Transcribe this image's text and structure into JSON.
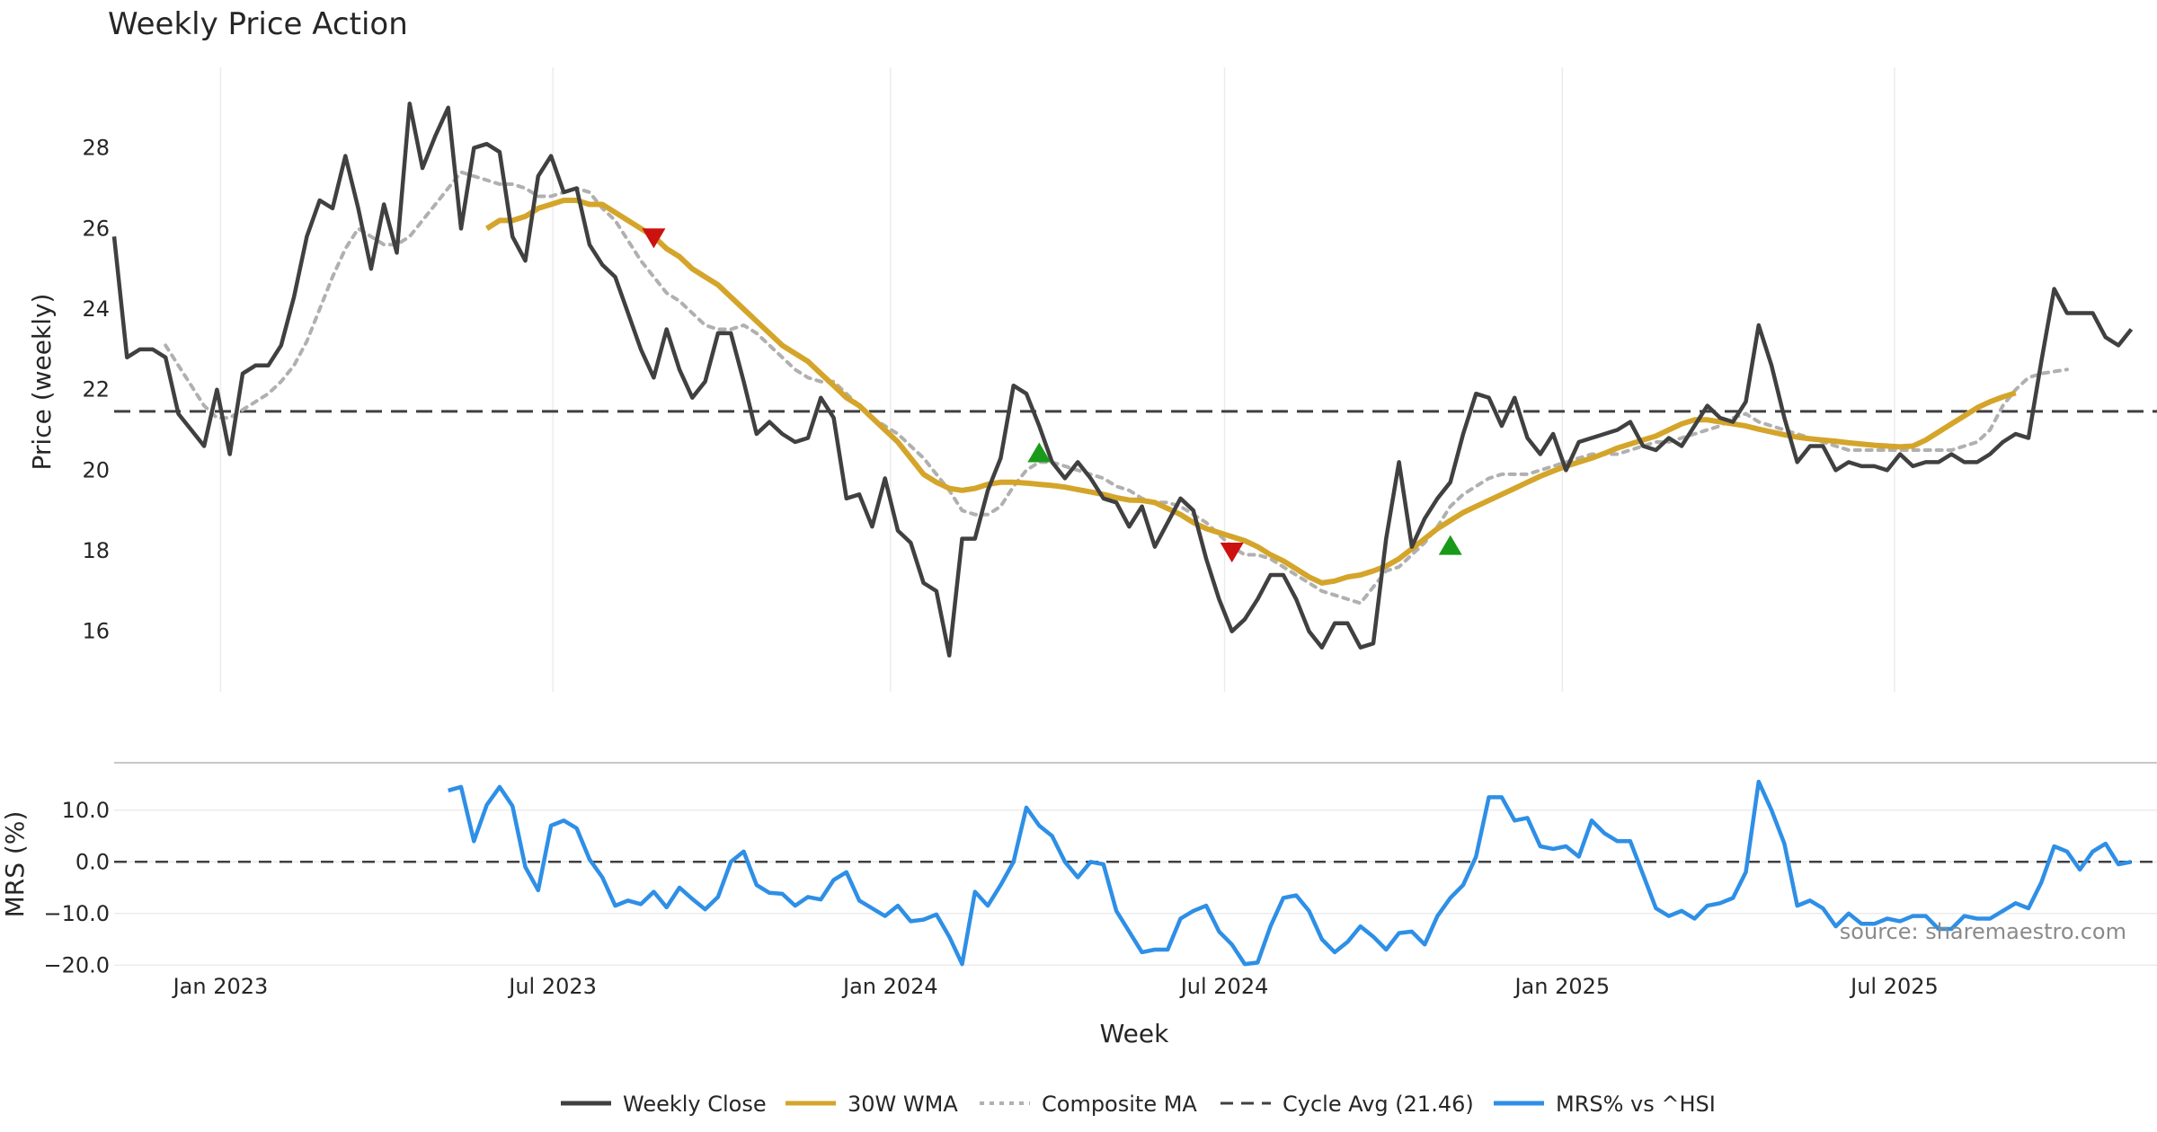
{
  "colors": {
    "close": "#404040",
    "wma": "#d4a52a",
    "composite": "#b0b0b0",
    "cycle": "#404040",
    "mrs": "#2e8fe6",
    "marker_up": "#1a9a1a",
    "marker_down": "#cc1111",
    "grid": "#ececec"
  },
  "chart_data": {
    "type": "line",
    "title": "Weekly Price Action",
    "xlabel": "Week",
    "source": "source: sharemaestro.com",
    "x_start": "2022-11-04",
    "x_end": "2025-11-21",
    "x_ticks": [
      {
        "label": "Jan 2023",
        "date": "2023-01-01"
      },
      {
        "label": "Jul 2023",
        "date": "2023-07-01"
      },
      {
        "label": "Jan 2024",
        "date": "2024-01-01"
      },
      {
        "label": "Jul 2024",
        "date": "2024-07-01"
      },
      {
        "label": "Jan 2025",
        "date": "2025-01-01"
      },
      {
        "label": "Jul 2025",
        "date": "2025-07-01"
      }
    ],
    "price_panel": {
      "ylabel": "Price (weekly)",
      "ylim": [
        14.5,
        30.0
      ],
      "y_ticks": [
        16,
        18,
        20,
        22,
        24,
        26,
        28
      ],
      "cycle_avg": 21.46,
      "series": [
        {
          "name": "Weekly Close",
          "start_date": "2022-11-04",
          "values": [
            25.8,
            22.8,
            23.0,
            23.0,
            22.8,
            21.4,
            21.0,
            20.6,
            22.0,
            20.4,
            22.4,
            22.6,
            22.6,
            23.1,
            24.3,
            25.8,
            26.7,
            26.5,
            27.8,
            26.5,
            25.0,
            26.6,
            25.4,
            29.1,
            27.5,
            28.3,
            29.0,
            26.0,
            28.0,
            28.1,
            27.9,
            25.8,
            25.2,
            27.3,
            27.8,
            26.9,
            27.0,
            25.6,
            25.1,
            24.8,
            23.9,
            23.0,
            22.3,
            23.5,
            22.5,
            21.8,
            22.2,
            23.4,
            23.4,
            22.2,
            20.9,
            21.2,
            20.9,
            20.7,
            20.8,
            21.8,
            21.3,
            19.3,
            19.4,
            18.6,
            19.8,
            18.5,
            18.2,
            17.2,
            17.0,
            15.4,
            18.3,
            18.3,
            19.5,
            20.3,
            22.1,
            21.9,
            21.1,
            20.2,
            19.8,
            20.2,
            19.8,
            19.3,
            19.2,
            18.6,
            19.1,
            18.1,
            18.7,
            19.3,
            19.0,
            17.8,
            16.8,
            16.0,
            16.3,
            16.8,
            17.4,
            17.4,
            16.8,
            16.0,
            15.6,
            16.2,
            16.2,
            15.6,
            15.7,
            18.3,
            20.2,
            18.1,
            18.8,
            19.3,
            19.7,
            20.9,
            21.9,
            21.8,
            21.1,
            21.8,
            20.8,
            20.4,
            20.9,
            20.0,
            20.7,
            20.8,
            20.9,
            21.0,
            21.2,
            20.6,
            20.5,
            20.8,
            20.6,
            21.1,
            21.6,
            21.3,
            21.2,
            21.7,
            23.6,
            22.6,
            21.3,
            20.2,
            20.6,
            20.6,
            20.0,
            20.2,
            20.1,
            20.1,
            20.0,
            20.4,
            20.1,
            20.2,
            20.2,
            20.4,
            20.2,
            20.2,
            20.4,
            20.7,
            20.9,
            20.8,
            22.7,
            24.5,
            23.9,
            23.9,
            23.9,
            23.3,
            23.1,
            23.5
          ]
        },
        {
          "name": "30W WMA",
          "start_date": "2023-05-26",
          "values": [
            26.0,
            26.2,
            26.2,
            26.3,
            26.5,
            26.6,
            26.7,
            26.7,
            26.6,
            26.6,
            26.4,
            26.2,
            26.0,
            25.8,
            25.5,
            25.3,
            25.0,
            24.8,
            24.6,
            24.3,
            24.0,
            23.7,
            23.4,
            23.1,
            22.9,
            22.7,
            22.4,
            22.1,
            21.8,
            21.6,
            21.3,
            21.0,
            20.7,
            20.3,
            19.9,
            19.7,
            19.55,
            19.5,
            19.55,
            19.65,
            19.7,
            19.7,
            19.68,
            19.65,
            19.62,
            19.58,
            19.52,
            19.46,
            19.4,
            19.32,
            19.26,
            19.25,
            19.2,
            19.05,
            18.9,
            18.7,
            18.55,
            18.45,
            18.35,
            18.25,
            18.1,
            17.9,
            17.75,
            17.55,
            17.35,
            17.2,
            17.25,
            17.35,
            17.4,
            17.5,
            17.62,
            17.8,
            18.05,
            18.3,
            18.55,
            18.75,
            18.95,
            19.1,
            19.25,
            19.4,
            19.55,
            19.7,
            19.85,
            19.98,
            20.1,
            20.2,
            20.3,
            20.42,
            20.55,
            20.65,
            20.75,
            20.85,
            21.0,
            21.15,
            21.25,
            21.25,
            21.2,
            21.15,
            21.1,
            21.02,
            20.95,
            20.88,
            20.82,
            20.78,
            20.75,
            20.72,
            20.68,
            20.65,
            20.62,
            20.6,
            20.58,
            20.6,
            20.75,
            20.95,
            21.15,
            21.35,
            21.55,
            21.7,
            21.82,
            21.92
          ]
        },
        {
          "name": "Composite MA",
          "start_date": "2022-12-02",
          "values": [
            23.1,
            22.6,
            22.1,
            21.6,
            21.3,
            21.3,
            21.5,
            21.7,
            21.9,
            22.2,
            22.6,
            23.2,
            24.0,
            24.8,
            25.5,
            26.0,
            25.8,
            25.6,
            25.6,
            25.8,
            26.2,
            26.6,
            27.0,
            27.4,
            27.3,
            27.2,
            27.1,
            27.1,
            27.0,
            26.8,
            26.8,
            26.9,
            27.0,
            26.9,
            26.5,
            26.2,
            25.7,
            25.2,
            24.8,
            24.4,
            24.2,
            23.9,
            23.6,
            23.5,
            23.5,
            23.6,
            23.4,
            23.1,
            22.8,
            22.5,
            22.3,
            22.2,
            22.2,
            21.9,
            21.6,
            21.3,
            21.1,
            20.9,
            20.6,
            20.3,
            19.9,
            19.5,
            19.0,
            18.9,
            18.9,
            19.1,
            19.6,
            20.0,
            20.2,
            20.2,
            20.1,
            20.0,
            19.9,
            19.8,
            19.6,
            19.5,
            19.3,
            19.2,
            19.2,
            19.1,
            18.9,
            18.7,
            18.4,
            18.1,
            17.9,
            17.9,
            17.8,
            17.6,
            17.4,
            17.2,
            17.0,
            16.9,
            16.8,
            16.7,
            17.1,
            17.5,
            17.6,
            17.9,
            18.2,
            18.6,
            19.1,
            19.4,
            19.6,
            19.8,
            19.9,
            19.9,
            19.9,
            20.0,
            20.1,
            20.2,
            20.3,
            20.4,
            20.4,
            20.4,
            20.5,
            20.6,
            20.7,
            20.7,
            20.8,
            20.9,
            21.0,
            21.1,
            21.3,
            21.4,
            21.2,
            21.1,
            21.0,
            20.9,
            20.8,
            20.7,
            20.6,
            20.5,
            20.5,
            20.5,
            20.5,
            20.5,
            20.5,
            20.5,
            20.5,
            20.5,
            20.6,
            20.7,
            21.0,
            21.6,
            22.0,
            22.3,
            22.4,
            22.45,
            22.5
          ]
        }
      ],
      "markers": [
        {
          "type": "down",
          "date": "2023-08-25",
          "value": 25.8
        },
        {
          "type": "up",
          "date": "2024-03-22",
          "value": 20.4
        },
        {
          "type": "down",
          "date": "2024-07-05",
          "value": 18.0
        },
        {
          "type": "up",
          "date": "2024-11-01",
          "value": 18.1
        }
      ]
    },
    "mrs_panel": {
      "ylabel": "MRS (%)",
      "ylim": [
        -21.0,
        19.0
      ],
      "y_ticks": [
        10,
        0,
        -10,
        -20
      ],
      "y_tick_labels": [
        "10.0",
        "0.0",
        "−10.0",
        "−20.0"
      ],
      "series": [
        {
          "name": "MRS% vs ^HSI",
          "start_date": "2023-05-05",
          "values": [
            13.8,
            14.5,
            4.0,
            11.0,
            14.5,
            10.8,
            -1.0,
            -5.5,
            7.0,
            8.0,
            6.5,
            0.5,
            -3.0,
            -8.5,
            -7.5,
            -8.2,
            -5.8,
            -8.8,
            -5.0,
            -7.2,
            -9.2,
            -6.8,
            0.0,
            2.0,
            -4.5,
            -6.0,
            -6.2,
            -8.5,
            -6.8,
            -7.3,
            -3.5,
            -2.0,
            -7.5,
            -9.0,
            -10.5,
            -8.5,
            -11.5,
            -11.2,
            -10.2,
            -14.5,
            -19.8,
            -5.8,
            -8.5,
            -4.5,
            0.0,
            10.5,
            7.0,
            5.0,
            0.0,
            -3.0,
            0.0,
            -0.5,
            -9.5,
            -13.5,
            -17.5,
            -17.0,
            -17.0,
            -11.0,
            -9.5,
            -8.5,
            -13.5,
            -16.0,
            -19.8,
            -19.5,
            -12.5,
            -7.0,
            -6.5,
            -9.5,
            -15.0,
            -17.5,
            -15.5,
            -12.5,
            -14.5,
            -17.0,
            -13.8,
            -13.5,
            -16.0,
            -10.5,
            -7.0,
            -4.5,
            1.0,
            12.5,
            12.5,
            8.0,
            8.5,
            3.0,
            2.5,
            3.0,
            1.0,
            8.0,
            5.5,
            4.0,
            4.0,
            -2.5,
            -9.0,
            -10.5,
            -9.5,
            -11.0,
            -8.5,
            -8.0,
            -7.0,
            -2.0,
            15.5,
            10.0,
            3.5,
            -8.5,
            -7.5,
            -9.0,
            -12.5,
            -10.0,
            -12.0,
            -12.0,
            -11.0,
            -11.5,
            -10.5,
            -10.5,
            -13.0,
            -13.0,
            -10.5,
            -11.0,
            -11.0,
            -9.5,
            -8.0,
            -9.0,
            -4.0,
            3.0,
            2.0,
            -1.5,
            2.0,
            3.5,
            -0.5,
            0.0
          ]
        }
      ]
    },
    "legend": [
      {
        "label": "Weekly Close",
        "style": "solid",
        "color": "#404040"
      },
      {
        "label": "30W WMA",
        "style": "solid",
        "color": "#d4a52a"
      },
      {
        "label": "Composite MA",
        "style": "dotted",
        "color": "#b0b0b0"
      },
      {
        "label": "Cycle Avg (21.46)",
        "style": "dashed",
        "color": "#404040"
      },
      {
        "label": "MRS% vs ^HSI",
        "style": "solid",
        "color": "#2e8fe6"
      }
    ]
  }
}
